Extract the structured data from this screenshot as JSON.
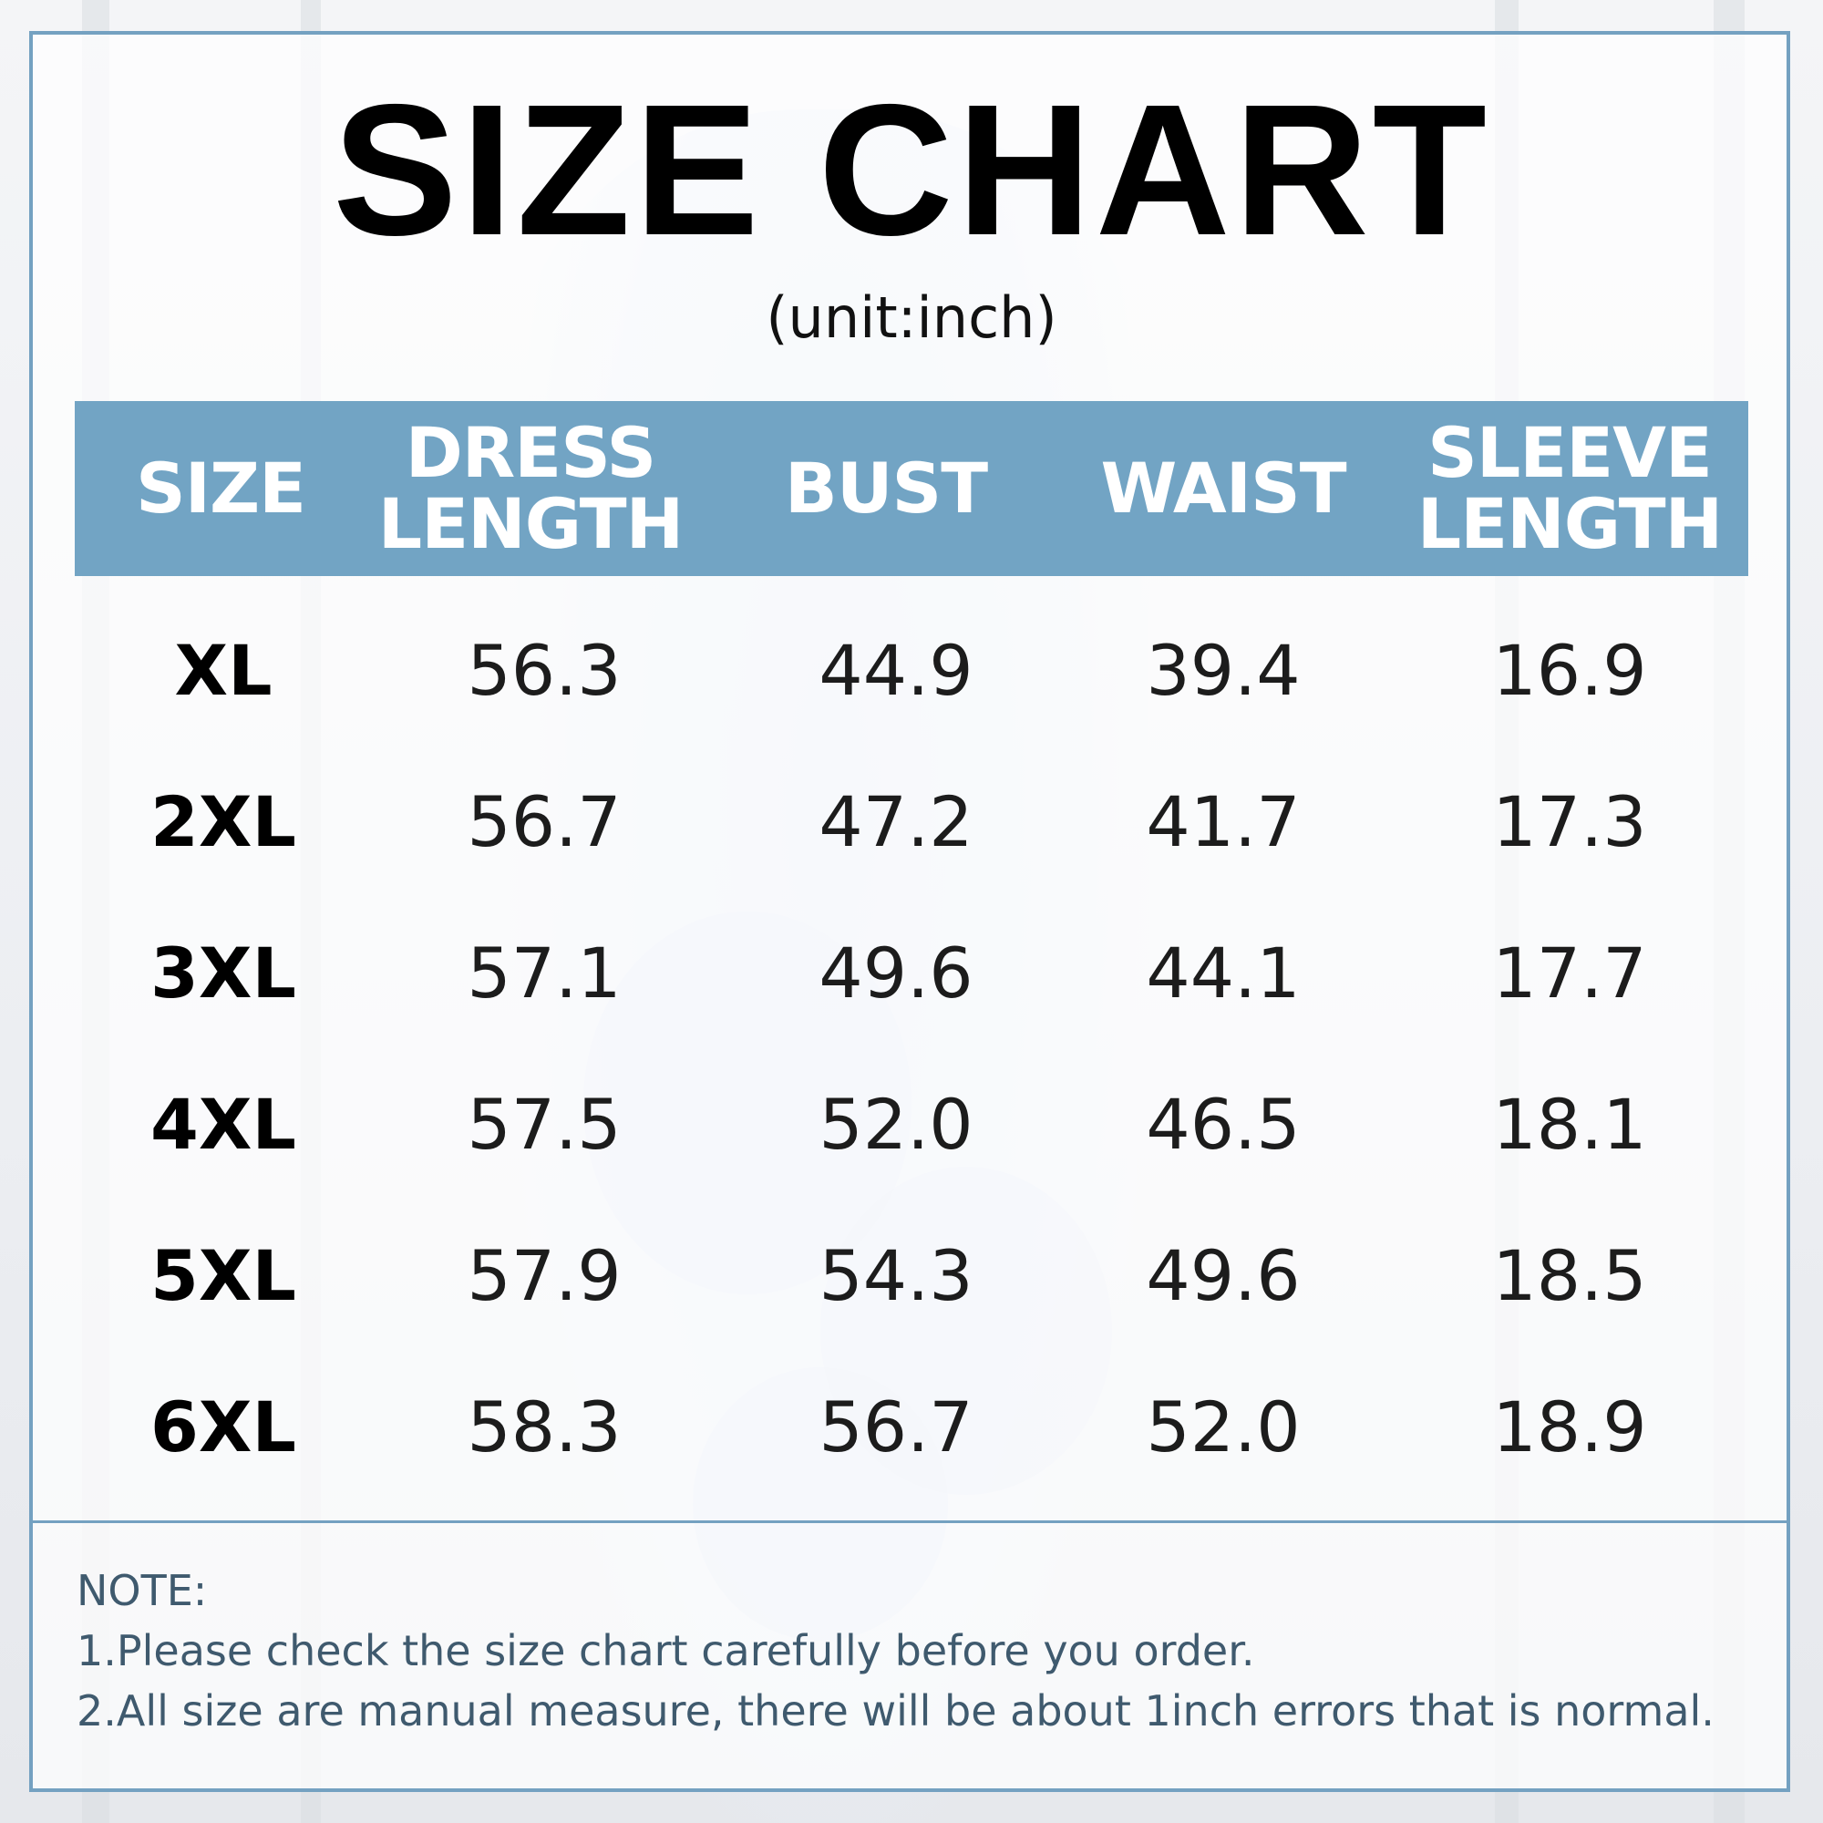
{
  "title": "SIZE CHART",
  "unit": "(unit:inch)",
  "columns": [
    {
      "line1": "SIZE",
      "line2": ""
    },
    {
      "line1": "DRESS",
      "line2": "LENGTH"
    },
    {
      "line1": "BUST",
      "line2": ""
    },
    {
      "line1": "WAIST",
      "line2": ""
    },
    {
      "line1": "SLEEVE",
      "line2": "LENGTH"
    }
  ],
  "rows": [
    {
      "size": "XL",
      "dress_length": "56.3",
      "bust": "44.9",
      "waist": "39.4",
      "sleeve_length": "16.9"
    },
    {
      "size": "2XL",
      "dress_length": "56.7",
      "bust": "47.2",
      "waist": "41.7",
      "sleeve_length": "17.3"
    },
    {
      "size": "3XL",
      "dress_length": "57.1",
      "bust": "49.6",
      "waist": "44.1",
      "sleeve_length": "17.7"
    },
    {
      "size": "4XL",
      "dress_length": "57.5",
      "bust": "52.0",
      "waist": "46.5",
      "sleeve_length": "18.1"
    },
    {
      "size": "5XL",
      "dress_length": "57.9",
      "bust": "54.3",
      "waist": "49.6",
      "sleeve_length": "18.5"
    },
    {
      "size": "6XL",
      "dress_length": "58.3",
      "bust": "56.7",
      "waist": "52.0",
      "sleeve_length": "18.9"
    }
  ],
  "notes": {
    "heading": "NOTE:",
    "line1": "1.Please check the size chart carefully before you order.",
    "line2": "2.All size are manual measure, there will be about 1inch errors that is normal."
  },
  "colors": {
    "header": "#72a4c4",
    "border": "#74a1c1",
    "note_text": "#3f5a6e"
  }
}
